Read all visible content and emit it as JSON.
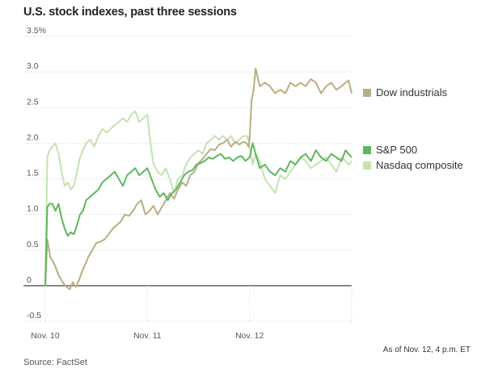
{
  "header": {
    "title": "U.S. stock indexes, past three sessions"
  },
  "footer": {
    "note": "As of Nov. 12, 4 p.m. ET",
    "source": "Source: FactSet"
  },
  "chart_data": {
    "type": "line",
    "title": "U.S. stock indexes, past three sessions",
    "xlabel": "",
    "ylabel": "",
    "ylim": [
      -0.5,
      3.5
    ],
    "y_ticks": [
      {
        "value": 3.5,
        "label": "3.5%"
      },
      {
        "value": 3.0,
        "label": "3.0"
      },
      {
        "value": 2.5,
        "label": "2.5"
      },
      {
        "value": 2.0,
        "label": "2.0"
      },
      {
        "value": 1.5,
        "label": "1.5"
      },
      {
        "value": 1.0,
        "label": "1.0"
      },
      {
        "value": 0.5,
        "label": "0.5"
      },
      {
        "value": 0,
        "label": "0"
      },
      {
        "value": -0.5,
        "label": "-0.5"
      }
    ],
    "x_domain": [
      0,
      3
    ],
    "x_ticks": [
      {
        "value": 0,
        "label": "Nov. 10"
      },
      {
        "value": 1,
        "label": "Nov. 11"
      },
      {
        "value": 2,
        "label": "Nov. 12"
      }
    ],
    "grid": true,
    "legend_position": "right",
    "colors": {
      "dow": "#b8ae82",
      "sp500": "#5cb85c",
      "nasdaq": "#c4e2b0",
      "grid": "#d4d4d4",
      "zero": "#444444"
    },
    "series": [
      {
        "name": "Dow industrials",
        "color": "#b8ae82",
        "x": [
          0,
          0.02,
          0.05,
          0.09,
          0.13,
          0.17,
          0.21,
          0.24,
          0.27,
          0.3,
          0.33,
          0.36,
          0.39,
          0.42,
          0.46,
          0.5,
          0.54,
          0.58,
          0.62,
          0.66,
          0.7,
          0.74,
          0.78,
          0.82,
          0.86,
          0.9,
          0.94,
          0.98,
          1.02,
          1.06,
          1.1,
          1.14,
          1.18,
          1.22,
          1.26,
          1.3,
          1.34,
          1.38,
          1.42,
          1.46,
          1.5,
          1.54,
          1.58,
          1.62,
          1.66,
          1.7,
          1.74,
          1.78,
          1.82,
          1.86,
          1.9,
          1.94,
          1.97,
          1.99,
          2.0,
          2.02,
          2.04,
          2.06,
          2.1,
          2.15,
          2.2,
          2.25,
          2.3,
          2.35,
          2.4,
          2.45,
          2.5,
          2.55,
          2.6,
          2.65,
          2.7,
          2.75,
          2.8,
          2.85,
          2.9,
          2.94,
          2.97,
          3.0
        ],
        "values": [
          0.0,
          0.65,
          0.4,
          0.3,
          0.15,
          0.05,
          -0.02,
          -0.05,
          0.05,
          -0.02,
          0.08,
          0.2,
          0.3,
          0.4,
          0.5,
          0.6,
          0.62,
          0.65,
          0.72,
          0.8,
          0.85,
          0.9,
          1.0,
          0.98,
          1.05,
          1.15,
          1.2,
          1.0,
          1.05,
          1.12,
          1.0,
          1.1,
          1.2,
          1.3,
          1.22,
          1.35,
          1.45,
          1.4,
          1.55,
          1.6,
          1.72,
          1.78,
          1.85,
          1.92,
          1.9,
          1.98,
          2.0,
          2.05,
          1.95,
          2.02,
          1.98,
          2.02,
          2.0,
          1.95,
          2.05,
          2.6,
          2.75,
          3.05,
          2.8,
          2.85,
          2.8,
          2.7,
          2.75,
          2.7,
          2.85,
          2.8,
          2.85,
          2.8,
          2.9,
          2.85,
          2.7,
          2.8,
          2.85,
          2.75,
          2.8,
          2.85,
          2.88,
          2.7
        ]
      },
      {
        "name": "S&P 500",
        "color": "#5cb85c",
        "x": [
          0,
          0.02,
          0.04,
          0.07,
          0.1,
          0.13,
          0.16,
          0.19,
          0.22,
          0.25,
          0.28,
          0.31,
          0.34,
          0.37,
          0.4,
          0.44,
          0.48,
          0.52,
          0.56,
          0.6,
          0.64,
          0.68,
          0.72,
          0.76,
          0.8,
          0.84,
          0.88,
          0.92,
          0.96,
          1.0,
          1.04,
          1.08,
          1.12,
          1.16,
          1.2,
          1.24,
          1.28,
          1.32,
          1.36,
          1.4,
          1.44,
          1.48,
          1.52,
          1.56,
          1.6,
          1.64,
          1.68,
          1.72,
          1.76,
          1.8,
          1.84,
          1.88,
          1.92,
          1.96,
          2.0,
          2.03,
          2.06,
          2.1,
          2.15,
          2.2,
          2.25,
          2.3,
          2.35,
          2.4,
          2.45,
          2.5,
          2.55,
          2.6,
          2.65,
          2.7,
          2.75,
          2.8,
          2.85,
          2.9,
          2.94,
          2.97,
          3.0
        ],
        "values": [
          0.0,
          1.1,
          1.15,
          1.15,
          1.05,
          1.15,
          0.95,
          0.8,
          0.7,
          0.75,
          0.72,
          0.85,
          1.0,
          1.05,
          1.2,
          1.25,
          1.3,
          1.35,
          1.45,
          1.5,
          1.55,
          1.6,
          1.5,
          1.4,
          1.55,
          1.6,
          1.65,
          1.55,
          1.6,
          1.65,
          1.5,
          1.35,
          1.25,
          1.3,
          1.2,
          1.3,
          1.35,
          1.45,
          1.55,
          1.6,
          1.62,
          1.7,
          1.72,
          1.75,
          1.8,
          1.78,
          1.82,
          1.85,
          1.78,
          1.8,
          1.75,
          1.8,
          1.82,
          1.75,
          1.8,
          2.0,
          1.85,
          1.65,
          1.7,
          1.6,
          1.55,
          1.65,
          1.6,
          1.75,
          1.7,
          1.8,
          1.85,
          1.75,
          1.9,
          1.8,
          1.75,
          1.85,
          1.8,
          1.75,
          1.9,
          1.85,
          1.8
        ]
      },
      {
        "name": "Nasdaq composite",
        "color": "#c4e2b0",
        "x": [
          0,
          0.02,
          0.04,
          0.07,
          0.1,
          0.13,
          0.16,
          0.19,
          0.22,
          0.25,
          0.28,
          0.31,
          0.34,
          0.37,
          0.4,
          0.44,
          0.48,
          0.52,
          0.56,
          0.6,
          0.64,
          0.68,
          0.72,
          0.76,
          0.8,
          0.84,
          0.88,
          0.92,
          0.96,
          1.0,
          1.03,
          1.06,
          1.1,
          1.14,
          1.18,
          1.22,
          1.26,
          1.3,
          1.34,
          1.38,
          1.42,
          1.46,
          1.5,
          1.54,
          1.58,
          1.62,
          1.66,
          1.7,
          1.74,
          1.78,
          1.82,
          1.86,
          1.9,
          1.94,
          1.98,
          2.0,
          2.03,
          2.06,
          2.1,
          2.15,
          2.2,
          2.25,
          2.3,
          2.35,
          2.4,
          2.45,
          2.5,
          2.55,
          2.6,
          2.65,
          2.7,
          2.75,
          2.8,
          2.85,
          2.9,
          2.94,
          2.97,
          3.0
        ],
        "values": [
          0.0,
          1.8,
          1.9,
          1.95,
          2.0,
          1.85,
          1.6,
          1.4,
          1.45,
          1.35,
          1.4,
          1.6,
          1.8,
          1.9,
          2.0,
          2.05,
          1.95,
          2.1,
          2.2,
          2.15,
          2.2,
          2.25,
          2.3,
          2.35,
          2.3,
          2.4,
          2.45,
          2.3,
          2.35,
          2.4,
          2.0,
          1.7,
          1.6,
          1.55,
          1.65,
          1.5,
          1.3,
          1.5,
          1.55,
          1.7,
          1.8,
          1.85,
          1.9,
          1.85,
          2.0,
          2.05,
          2.1,
          2.05,
          2.1,
          2.05,
          2.1,
          2.0,
          2.05,
          2.1,
          2.1,
          1.95,
          1.7,
          1.85,
          1.75,
          1.5,
          1.4,
          1.3,
          1.55,
          1.5,
          1.6,
          1.7,
          1.8,
          1.75,
          1.65,
          1.7,
          1.75,
          1.8,
          1.7,
          1.6,
          1.8,
          1.75,
          1.7,
          1.75
        ]
      }
    ]
  }
}
